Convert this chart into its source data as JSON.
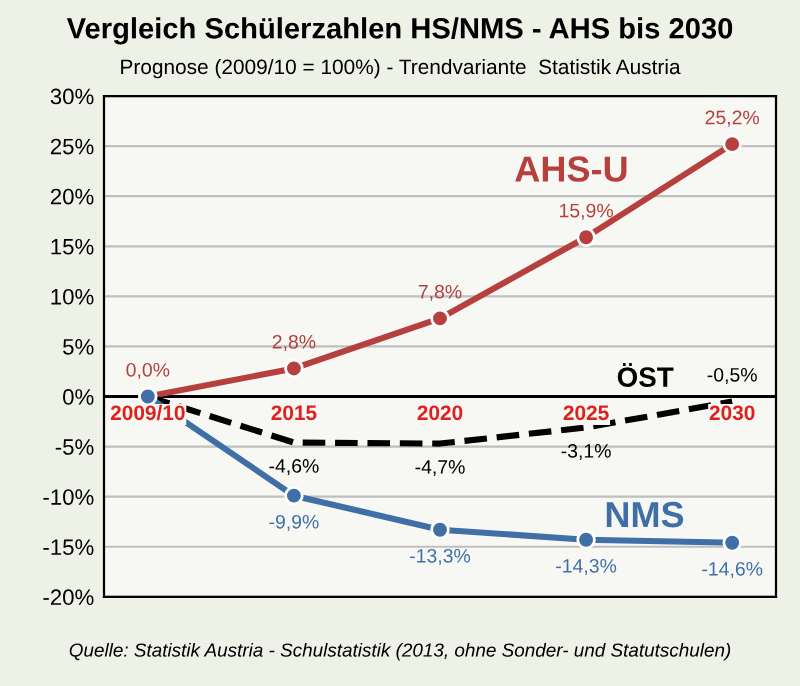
{
  "chart_data": {
    "type": "line",
    "title": "Vergleich Schülerzahlen HS/NMS - AHS bis 2030",
    "subtitle": "Prognose (2009/10 = 100%) - Trendvariante  Statistik Austria",
    "categories": [
      "2009/10",
      "2015",
      "2020",
      "2025",
      "2030"
    ],
    "series": [
      {
        "name": "AHS-U",
        "color": "#b5403e",
        "values": [
          0,
          2.8,
          7.8,
          15.9,
          25.2
        ],
        "value_labels": [
          "0,0%",
          "2,8%",
          "7,8%",
          "15,9%",
          "25,2%"
        ],
        "marker": "circle",
        "line_style": "solid"
      },
      {
        "name": "ÖST",
        "color": "#000000",
        "values": [
          0,
          -4.6,
          -4.7,
          -3.1,
          -0.5
        ],
        "value_labels": [
          null,
          "-4,6%",
          "-4,7%",
          "-3,1%",
          "-0,5%"
        ],
        "marker": "none",
        "line_style": "dashed"
      },
      {
        "name": "NMS",
        "color": "#3f6fa6",
        "values": [
          0,
          -9.9,
          -13.3,
          -14.3,
          -14.6
        ],
        "value_labels": [
          null,
          "-9,9%",
          "-13,3%",
          "-14,3%",
          "-14,6%"
        ],
        "marker": "circle",
        "line_style": "solid"
      }
    ],
    "ylim": [
      -20,
      30
    ],
    "yticks": [
      {
        "value": -20,
        "label": "-20%"
      },
      {
        "value": -15,
        "label": "-15%"
      },
      {
        "value": -10,
        "label": "-10%"
      },
      {
        "value": -5,
        "label": "-5%"
      },
      {
        "value": 0,
        "label": "0%"
      },
      {
        "value": 5,
        "label": "5%"
      },
      {
        "value": 10,
        "label": "10%"
      },
      {
        "value": 15,
        "label": "15%"
      },
      {
        "value": 20,
        "label": "20%"
      },
      {
        "value": 25,
        "label": "25%"
      },
      {
        "value": 30,
        "label": "30%"
      }
    ],
    "grid": "y",
    "legend": false,
    "annotations": [
      "Quelle: Statistik Austria - Schulstatistik (2013, ohne Sonder- und Statutschulen)"
    ]
  }
}
